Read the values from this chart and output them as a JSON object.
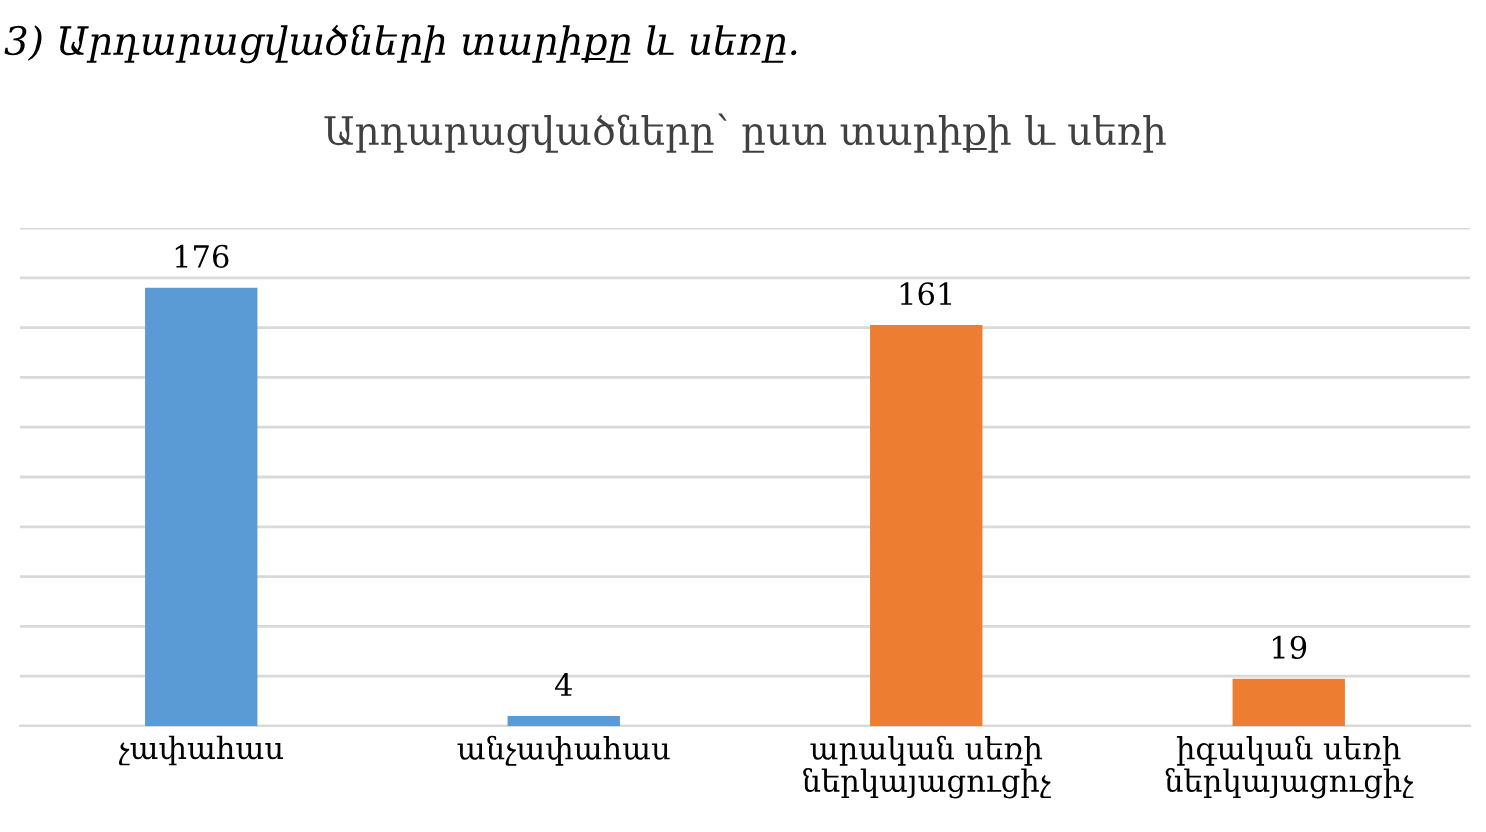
{
  "chart_data": {
    "type": "bar",
    "title": "Արդարացվածները՝ ըստ տարիքի և սեռի",
    "annotations": [
      "3) Արդարացվածների տարիքը և սեռը."
    ],
    "categories": [
      "չափահաս",
      "անչափահաս",
      "արական սեռի\nներկայացուցիչ",
      "իգական սեռի\nներկայացուցիչ"
    ],
    "values": [
      176,
      4,
      161,
      19
    ],
    "colors": [
      "#5b9bd5",
      "#5b9bd5",
      "#ed7d31",
      "#ed7d31"
    ],
    "data_labels": true,
    "ylim": [
      0,
      200
    ],
    "yticks": [
      {
        "value": 0,
        "label": null
      },
      {
        "value": 20,
        "label": null
      },
      {
        "value": 40,
        "label": null
      },
      {
        "value": 60,
        "label": null
      },
      {
        "value": 80,
        "label": null
      },
      {
        "value": 100,
        "label": null
      },
      {
        "value": 120,
        "label": null
      },
      {
        "value": 140,
        "label": null
      },
      {
        "value": 160,
        "label": null
      },
      {
        "value": 180,
        "label": null
      },
      {
        "value": 200,
        "label": null
      }
    ],
    "grid": "y",
    "tick_labels": "x"
  }
}
